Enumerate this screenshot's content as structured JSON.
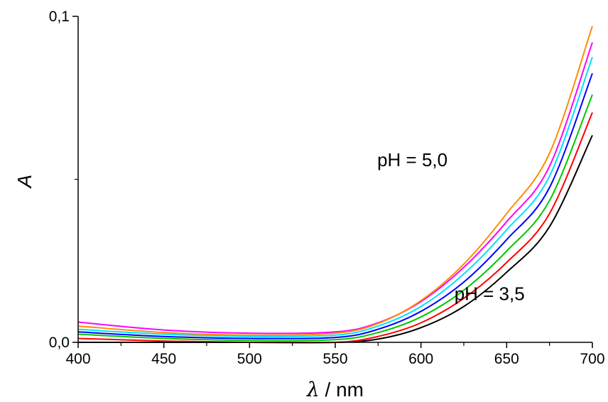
{
  "chart_data": {
    "type": "line",
    "title": "",
    "xlabel_symbol": "λ",
    "xlabel_unit": " / nm",
    "ylabel": "A",
    "xlim": [
      400,
      700
    ],
    "ylim": [
      0.0,
      0.1
    ],
    "x_ticks": [
      400,
      450,
      500,
      550,
      600,
      650,
      700
    ],
    "x_tick_labels": [
      "400",
      "450",
      "500",
      "550",
      "600",
      "650",
      "700"
    ],
    "y_ticks": [
      0.0,
      0.1
    ],
    "y_tick_labels": [
      "0,0",
      "0,1"
    ],
    "grid": false,
    "legend": "none",
    "annotations": [
      {
        "text": "pH = 5,0",
        "x": 595,
        "y": 0.054
      },
      {
        "text": "pH = 3,5",
        "x": 640,
        "y": 0.013
      }
    ],
    "series": [
      {
        "color": "#000000",
        "points": [
          [
            400,
            0.0
          ],
          [
            450,
            0.0
          ],
          [
            500,
            0.0
          ],
          [
            550,
            0.0
          ],
          [
            575,
            0.001
          ],
          [
            600,
            0.0045
          ],
          [
            625,
            0.011
          ],
          [
            650,
            0.0215
          ],
          [
            675,
            0.0355
          ],
          [
            700,
            0.0635
          ]
        ]
      },
      {
        "color": "#ff0000",
        "points": [
          [
            400,
            0.0012
          ],
          [
            450,
            0.0004
          ],
          [
            500,
            0.0
          ],
          [
            550,
            0.0
          ],
          [
            575,
            0.0018
          ],
          [
            600,
            0.006
          ],
          [
            625,
            0.0135
          ],
          [
            650,
            0.0245
          ],
          [
            675,
            0.0395
          ],
          [
            700,
            0.0705
          ]
        ]
      },
      {
        "color": "#00c800",
        "points": [
          [
            400,
            0.0025
          ],
          [
            450,
            0.0012
          ],
          [
            500,
            0.0006
          ],
          [
            550,
            0.0008
          ],
          [
            575,
            0.003
          ],
          [
            600,
            0.0078
          ],
          [
            625,
            0.016
          ],
          [
            650,
            0.028
          ],
          [
            675,
            0.0435
          ],
          [
            700,
            0.076
          ]
        ]
      },
      {
        "color": "#0000ff",
        "points": [
          [
            400,
            0.0032
          ],
          [
            450,
            0.0018
          ],
          [
            500,
            0.0012
          ],
          [
            550,
            0.0015
          ],
          [
            575,
            0.004
          ],
          [
            600,
            0.0095
          ],
          [
            625,
            0.0185
          ],
          [
            650,
            0.0315
          ],
          [
            675,
            0.0475
          ],
          [
            700,
            0.0825
          ]
        ]
      },
      {
        "color": "#00e0ff",
        "points": [
          [
            400,
            0.004
          ],
          [
            450,
            0.0025
          ],
          [
            500,
            0.0018
          ],
          [
            550,
            0.0022
          ],
          [
            575,
            0.005
          ],
          [
            600,
            0.011
          ],
          [
            625,
            0.021
          ],
          [
            650,
            0.0345
          ],
          [
            675,
            0.051
          ],
          [
            700,
            0.0875
          ]
        ]
      },
      {
        "color": "#ff00ff",
        "points": [
          [
            400,
            0.0062
          ],
          [
            450,
            0.0038
          ],
          [
            500,
            0.0028
          ],
          [
            550,
            0.0032
          ],
          [
            575,
            0.006
          ],
          [
            600,
            0.0125
          ],
          [
            625,
            0.023
          ],
          [
            650,
            0.037
          ],
          [
            675,
            0.054
          ],
          [
            700,
            0.092
          ]
        ]
      },
      {
        "color": "#ff8c00",
        "points": [
          [
            400,
            0.005
          ],
          [
            450,
            0.003
          ],
          [
            500,
            0.0022
          ],
          [
            550,
            0.0028
          ],
          [
            575,
            0.0058
          ],
          [
            600,
            0.0128
          ],
          [
            625,
            0.024
          ],
          [
            650,
            0.0395
          ],
          [
            675,
            0.058
          ],
          [
            700,
            0.097
          ]
        ]
      }
    ]
  }
}
